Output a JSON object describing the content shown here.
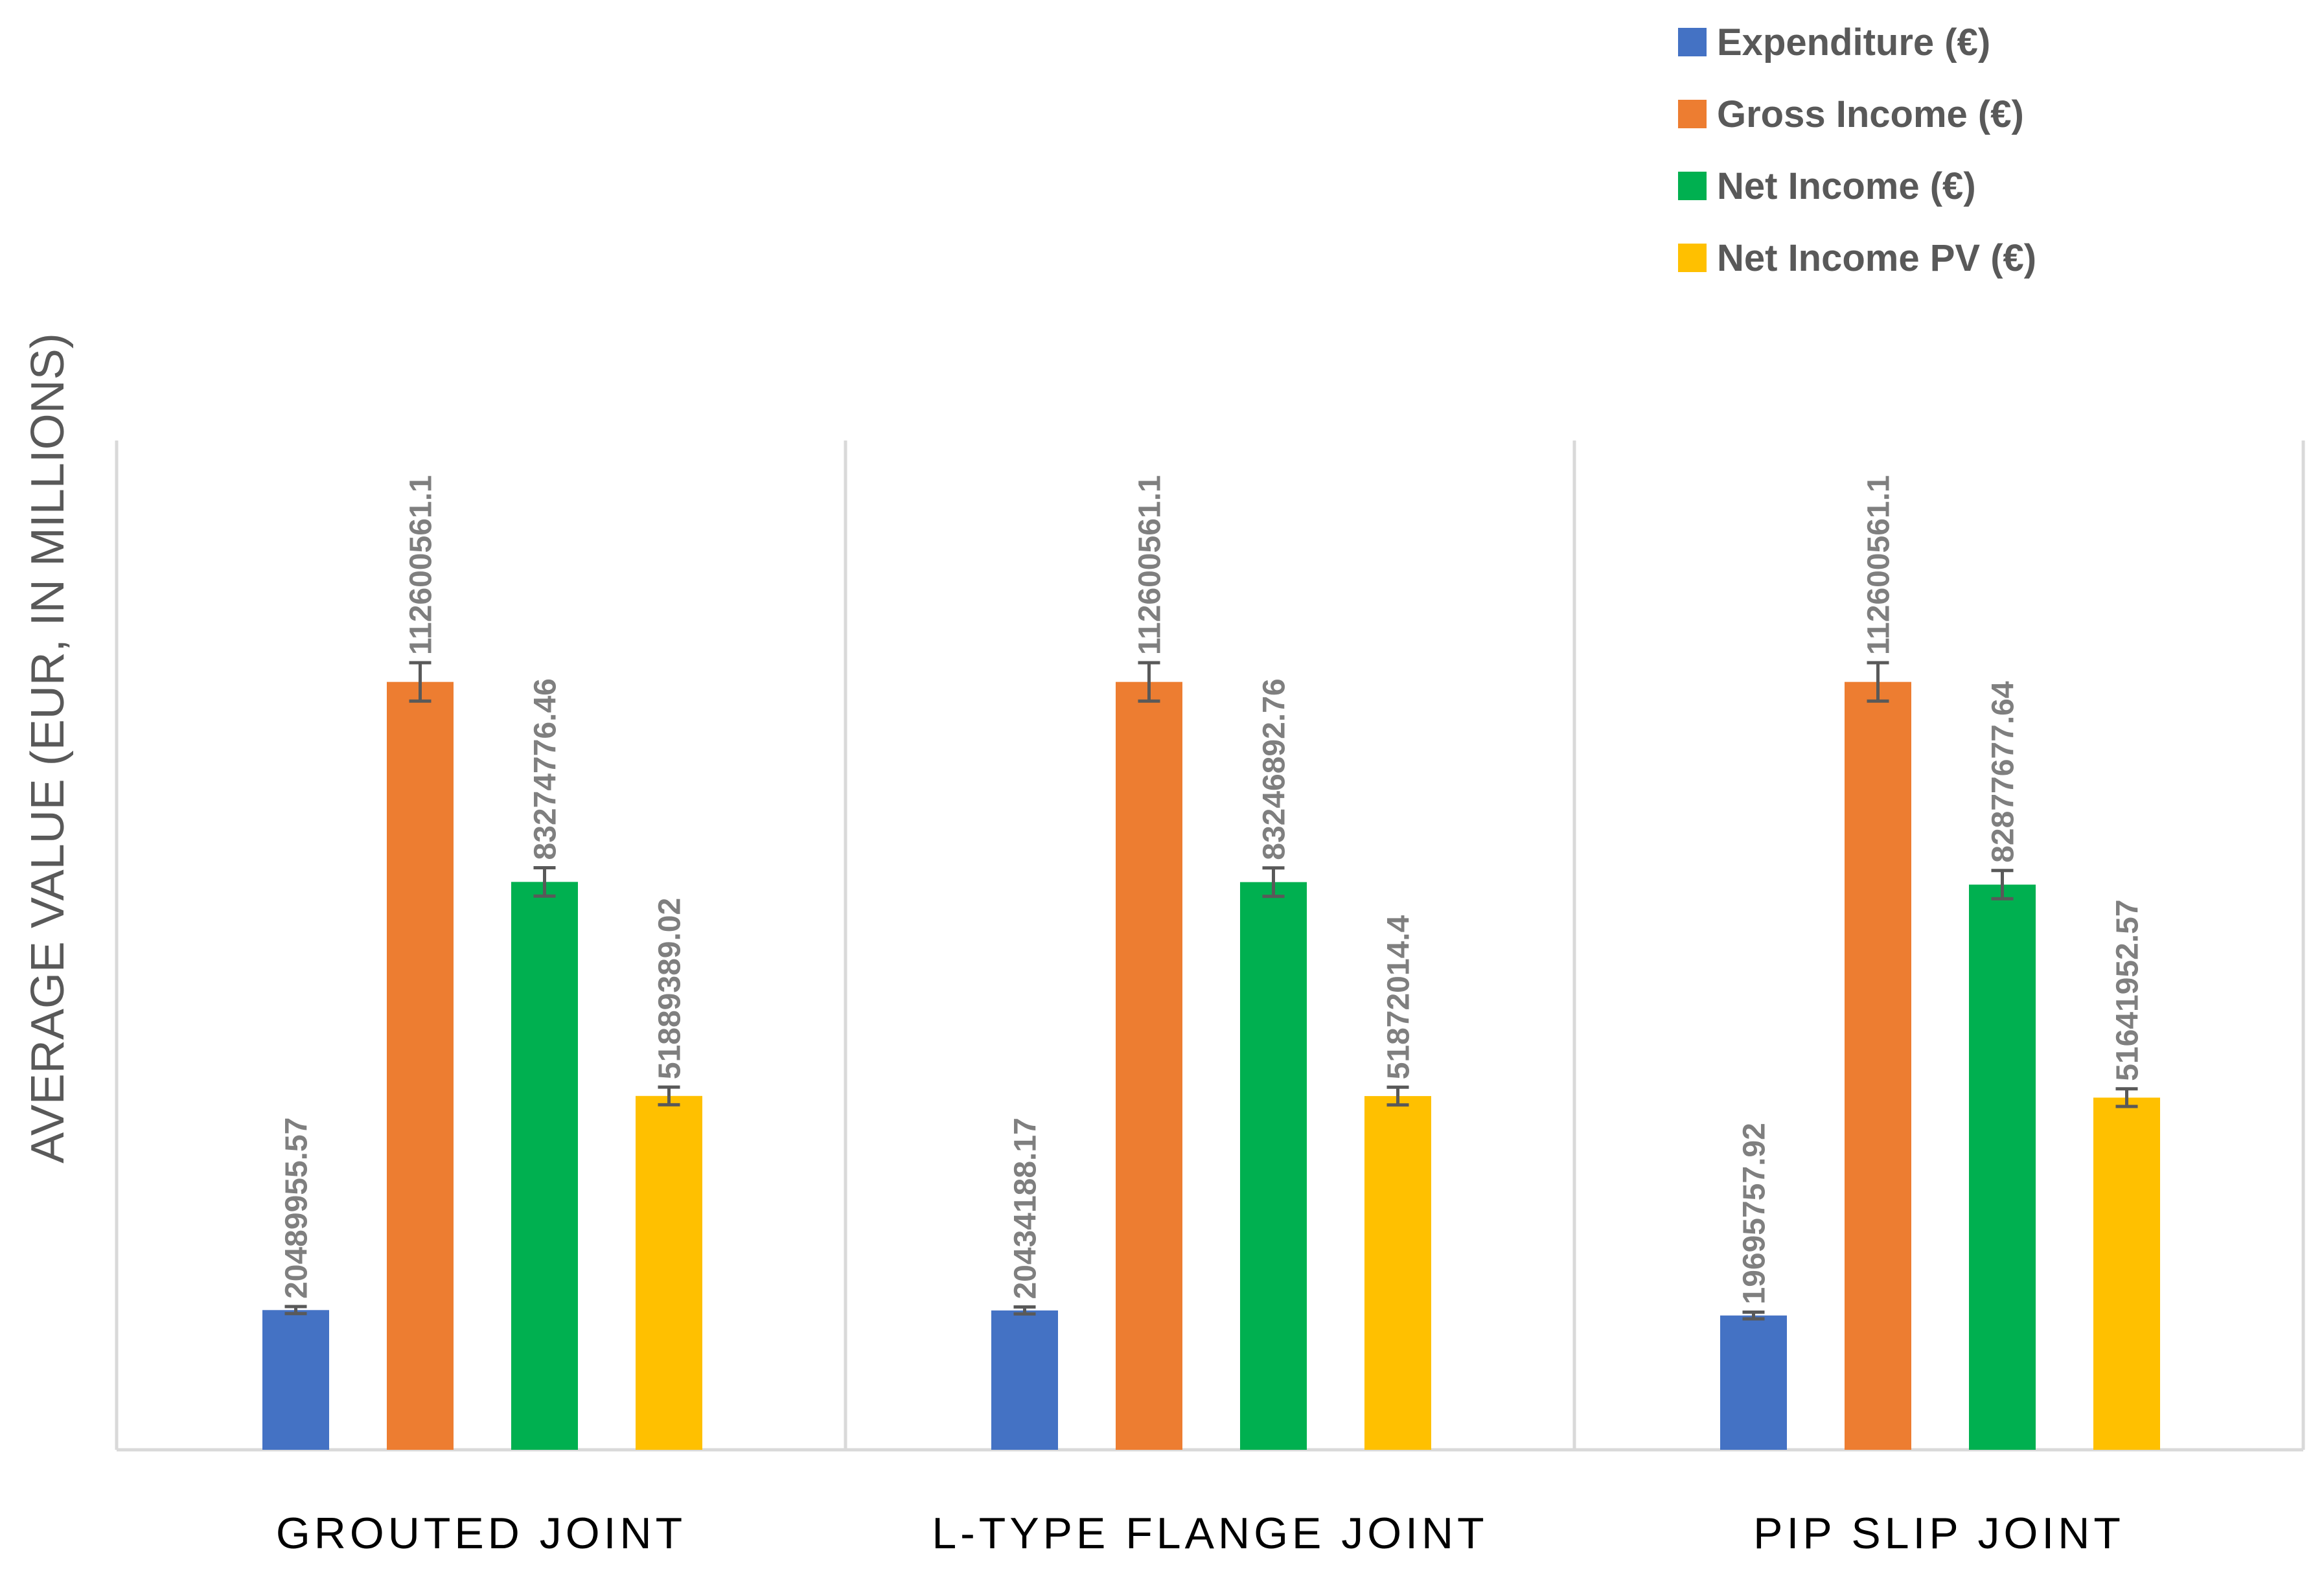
{
  "chart_data": {
    "type": "bar",
    "title": "",
    "xlabel": "",
    "ylabel": "AVERAGE VALUE (EUR, IN MILLIONS)",
    "ylim": [
      0,
      148000000
    ],
    "grid": false,
    "legend_position": "top-right",
    "categories": [
      "GROUTED JOINT",
      "L-TYPE FLANGE JOINT",
      "PIP SLIP JOINT"
    ],
    "series": [
      {
        "name": "Expenditure (€)",
        "color": "#4472c4",
        "values": [
          20489955.57,
          20434188.17,
          19695757.92
        ],
        "labels": [
          "20489955.57",
          "20434188.17",
          "19695757.92"
        ]
      },
      {
        "name": "Gross Income (€)",
        "color": "#ed7d31",
        "values": [
          112600561.1,
          112600561.1,
          112600561.1
        ],
        "labels": [
          "112600561.1",
          "112600561.1",
          "112600561.1"
        ]
      },
      {
        "name": "Net Income (€)",
        "color": "#00b050",
        "values": [
          83274776.46,
          83246892.76,
          82877677.64
        ],
        "labels": [
          "83274776.46",
          "83246892.76",
          "82877677.64"
        ]
      },
      {
        "name": "Net Income PV (€)",
        "color": "#ffc000",
        "values": [
          51889389.02,
          51872014.4,
          51641952.57
        ],
        "labels": [
          "51889389.02",
          "51872014.4",
          "51641952.57"
        ]
      }
    ],
    "error_fraction": 0.05
  }
}
